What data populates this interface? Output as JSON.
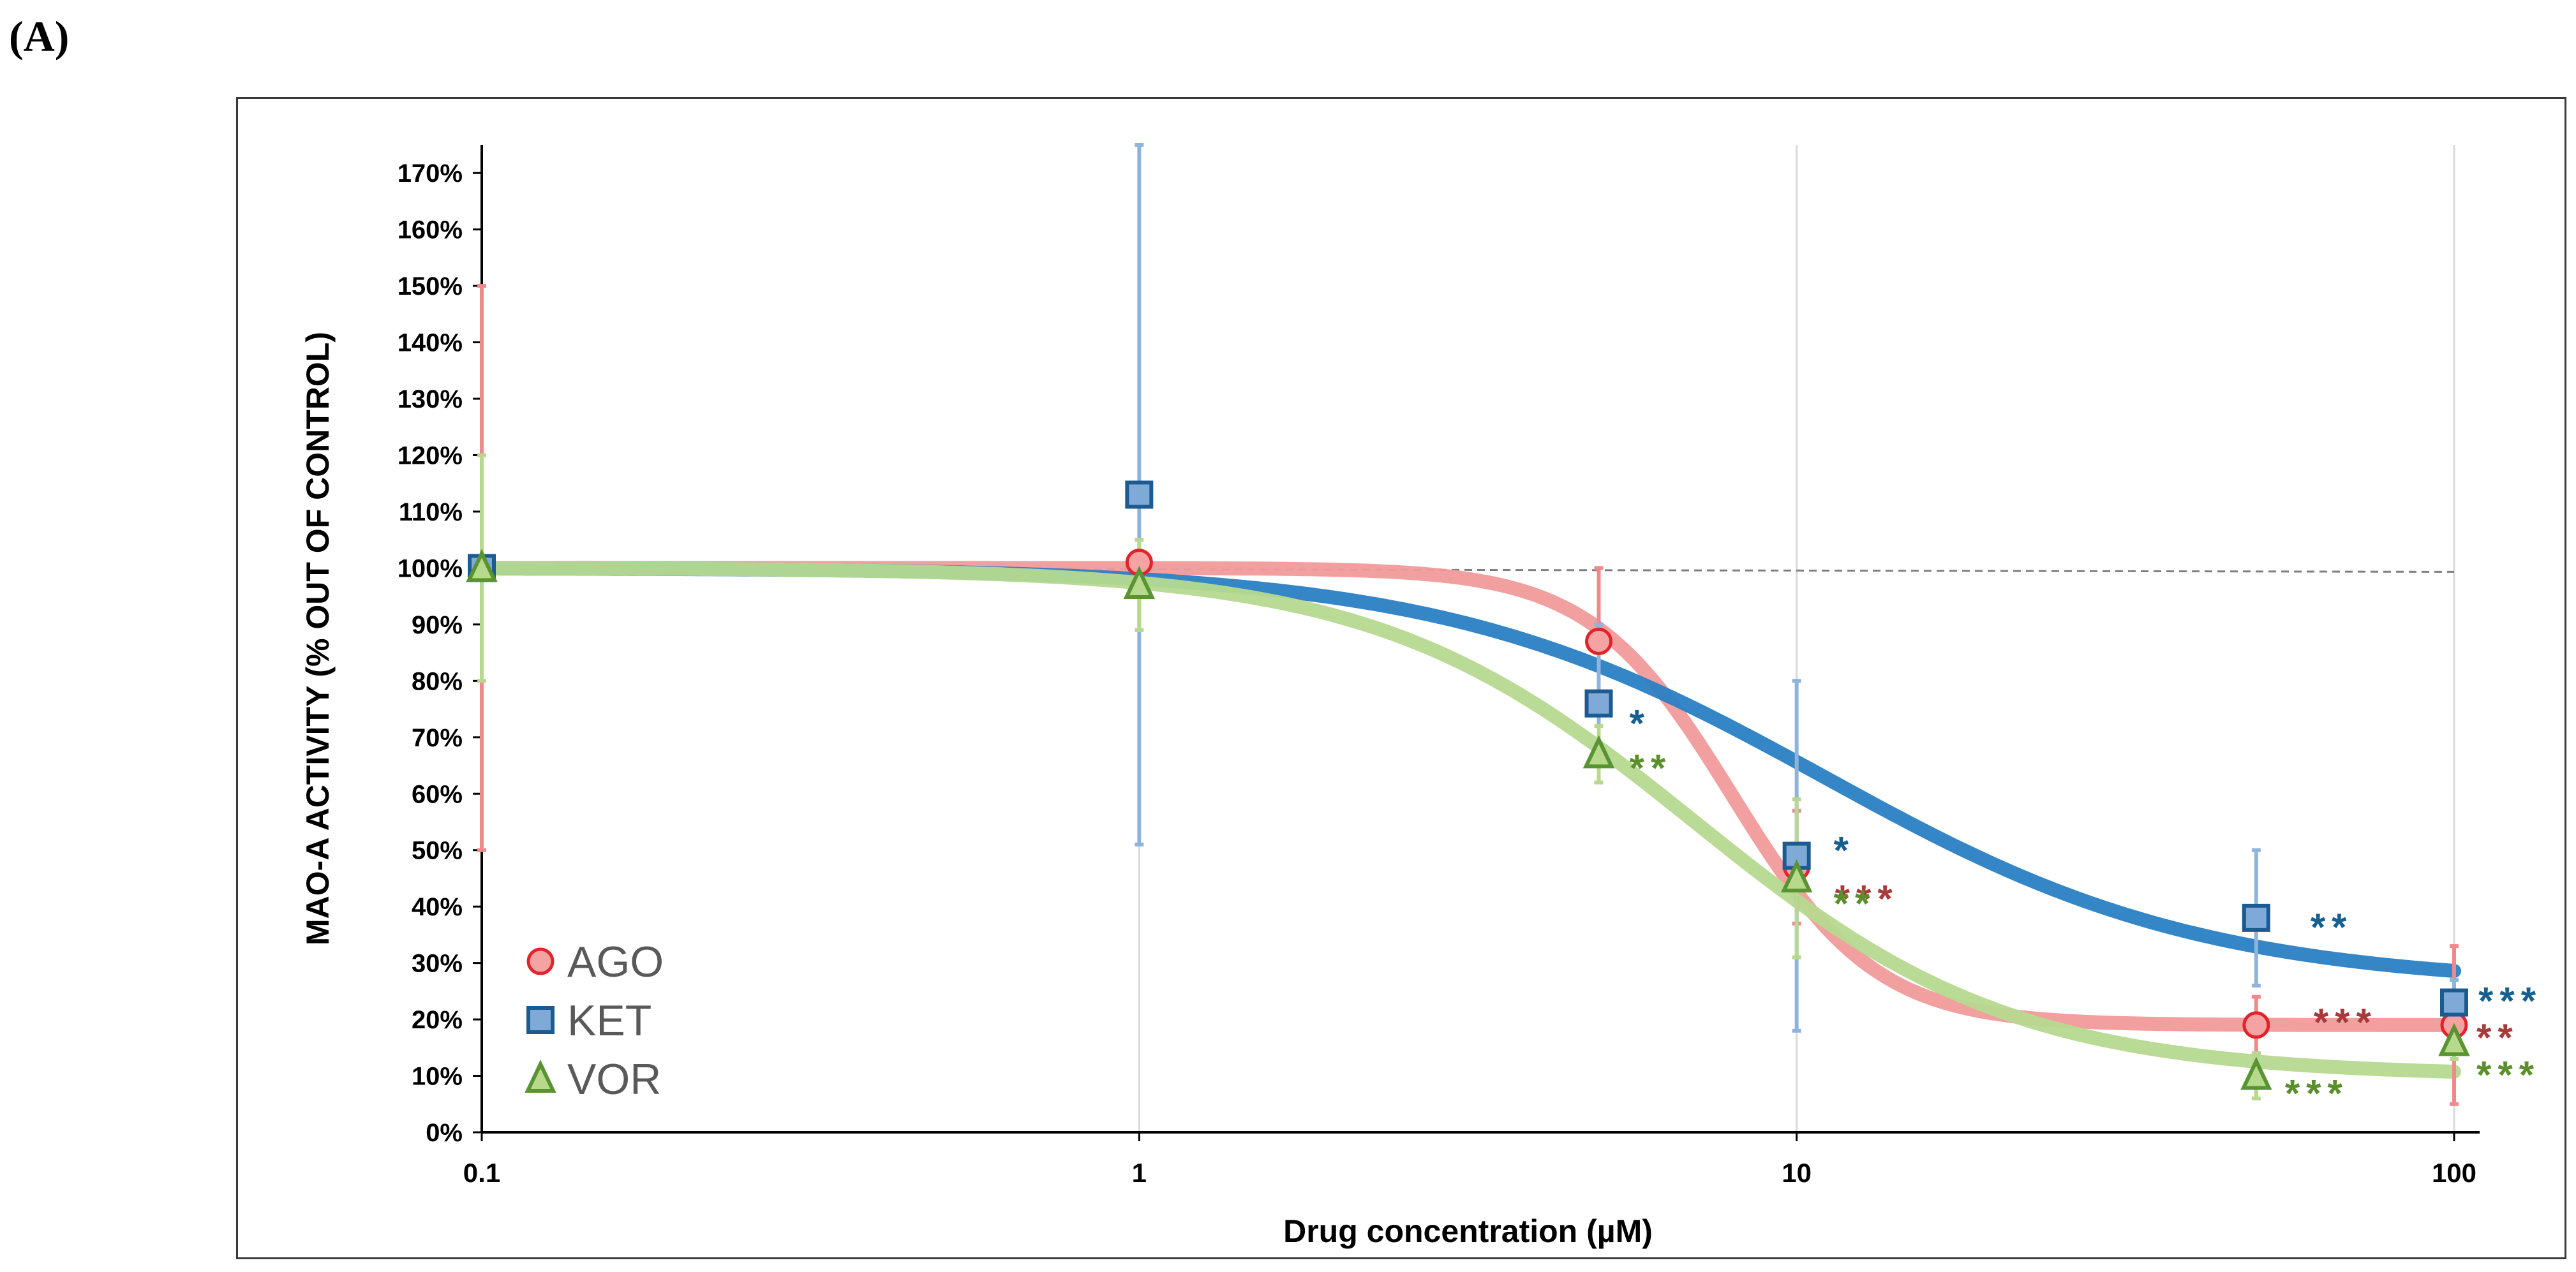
{
  "panel_label": "(A)",
  "chart_data": {
    "type": "scatter",
    "title": "",
    "xlabel": "Drug concentration (µM)",
    "ylabel": "MAO-A ACTIVITY (% OUT OF CONTROL)",
    "xscale": "log",
    "xlim": [
      0.1,
      100
    ],
    "ylim": [
      0,
      175
    ],
    "x_ticks": [
      0.1,
      1,
      10,
      100
    ],
    "x_tick_labels": [
      "0.1",
      "1",
      "10",
      "100"
    ],
    "y_ticks": [
      0,
      10,
      20,
      30,
      40,
      50,
      60,
      70,
      80,
      90,
      100,
      110,
      120,
      130,
      140,
      150,
      160,
      170
    ],
    "y_tick_labels": [
      "0%",
      "10%",
      "20%",
      "30%",
      "40%",
      "50%",
      "60%",
      "70%",
      "80%",
      "90%",
      "100%",
      "110%",
      "120%",
      "130%",
      "140%",
      "150%",
      "160%",
      "170%"
    ],
    "reference_line": {
      "y": 100,
      "style": "dashed"
    },
    "legend_position": "bottom-left",
    "series": [
      {
        "name": "AGO",
        "marker": "circle",
        "color": "#e8686a",
        "fit_color": "#f19a9a",
        "x": [
          0.1,
          1,
          5,
          10,
          50,
          100
        ],
        "y": [
          100,
          101,
          87,
          47,
          19,
          19
        ],
        "err": [
          50,
          0,
          13,
          10,
          5,
          14
        ],
        "significance": [
          "",
          "",
          "",
          "***",
          "***",
          "**"
        ],
        "fit": {
          "bottom": 19,
          "top": 100,
          "ec50": 8,
          "hill": 4
        }
      },
      {
        "name": "KET",
        "marker": "square",
        "color": "#1f6fb2",
        "fit_color": "#2a7fc4",
        "x": [
          0.1,
          1,
          5,
          10,
          50,
          100
        ],
        "y": [
          100,
          113,
          76,
          49,
          38,
          23
        ],
        "err": [
          0,
          62,
          14,
          31,
          12,
          4
        ],
        "significance": [
          "",
          "",
          "*",
          "*",
          "**",
          "***"
        ],
        "fit": {
          "bottom": 26,
          "top": 100,
          "ec50": 11,
          "hill": 1.5
        }
      },
      {
        "name": "VOR",
        "marker": "triangle",
        "color": "#6aa641",
        "fit_color": "#b6d98f",
        "x": [
          0.1,
          1,
          5,
          10,
          50,
          100
        ],
        "y": [
          100,
          97,
          67,
          45,
          10,
          16
        ],
        "err": [
          20,
          8,
          5,
          14,
          4,
          3
        ],
        "significance": [
          "",
          "",
          "**",
          "**",
          "***",
          "***"
        ],
        "fit": {
          "bottom": 10,
          "top": 100,
          "ec50": 7,
          "hill": 1.8
        }
      }
    ],
    "significance_colors": {
      "AGO": "#a83a3a",
      "KET": "#16608f",
      "VOR": "#5a8f2b"
    }
  }
}
